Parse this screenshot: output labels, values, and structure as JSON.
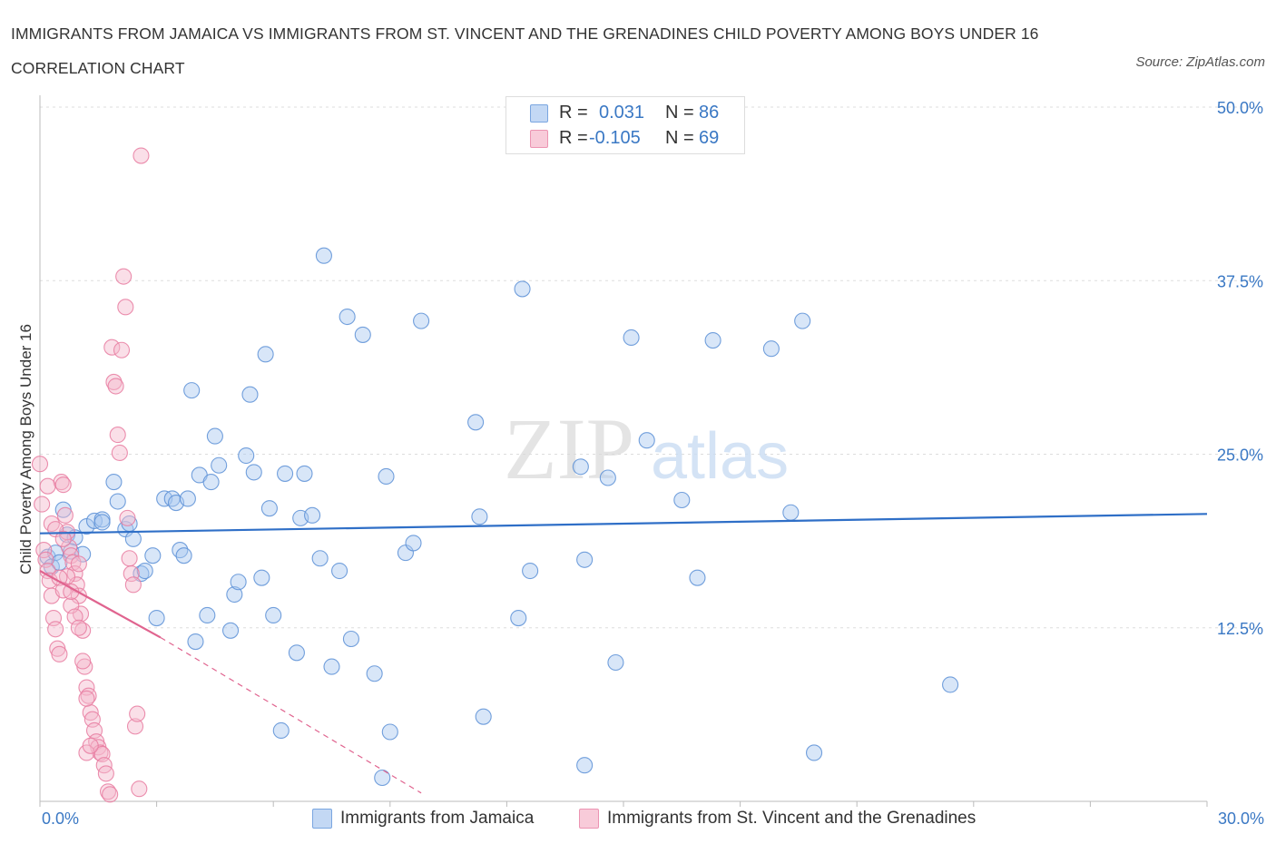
{
  "header": {
    "title": "IMMIGRANTS FROM JAMAICA VS IMMIGRANTS FROM ST. VINCENT AND THE GRENADINES CHILD POVERTY AMONG BOYS UNDER 16 CORRELATION CHART",
    "source": "Source: ZipAtlas.com"
  },
  "watermark": {
    "zip": "ZIP",
    "atlas": "atlas"
  },
  "legend": {
    "r_label": "R =",
    "n_label": "N =",
    "rows": [
      {
        "r": "0.031",
        "n": "86",
        "color": "#a9c8f0"
      },
      {
        "r": "-0.105",
        "n": "69",
        "color": "#f5b8cb"
      }
    ]
  },
  "bottom_legend": [
    {
      "label": "Immigrants from Jamaica",
      "color": "#a9c8f0"
    },
    {
      "label": "Immigrants from St. Vincent and the Grenadines",
      "color": "#f5b8cb"
    }
  ],
  "chart_data": {
    "type": "scatter",
    "xlabel": "",
    "ylabel": "Child Poverty Among Boys Under 16",
    "xlim": [
      0,
      30
    ],
    "ylim": [
      0,
      50
    ],
    "x_tick_labels": [
      "0.0%",
      "30.0%"
    ],
    "y_ticks": [
      12.5,
      25,
      37.5,
      50
    ],
    "y_tick_labels": [
      "12.5%",
      "25.0%",
      "37.5%",
      "50.0%"
    ],
    "grid": true,
    "legend_position": "top-center",
    "series": [
      {
        "name": "Immigrants from Jamaica",
        "color": "#5b8fd6",
        "fill": "#a9c8f0",
        "trend": {
          "x": [
            0,
            30
          ],
          "y": [
            19.3,
            20.7
          ],
          "color": "#2f6fc7"
        },
        "points": [
          [
            0.2,
            17.6
          ],
          [
            0.3,
            16.9
          ],
          [
            0.4,
            17.9
          ],
          [
            0.6,
            21.0
          ],
          [
            0.7,
            19.2
          ],
          [
            0.9,
            19.0
          ],
          [
            1.2,
            19.8
          ],
          [
            1.4,
            20.2
          ],
          [
            1.6,
            20.3
          ],
          [
            1.9,
            23.0
          ],
          [
            2.0,
            21.6
          ],
          [
            2.2,
            19.6
          ],
          [
            2.4,
            18.9
          ],
          [
            2.6,
            16.4
          ],
          [
            2.7,
            16.6
          ],
          [
            2.9,
            17.7
          ],
          [
            3.0,
            13.2
          ],
          [
            3.2,
            21.8
          ],
          [
            3.4,
            21.8
          ],
          [
            3.5,
            21.5
          ],
          [
            3.6,
            18.1
          ],
          [
            3.7,
            17.7
          ],
          [
            3.8,
            21.8
          ],
          [
            3.9,
            29.6
          ],
          [
            4.0,
            11.5
          ],
          [
            4.1,
            23.5
          ],
          [
            4.3,
            13.4
          ],
          [
            4.4,
            23.0
          ],
          [
            4.5,
            26.3
          ],
          [
            4.6,
            24.2
          ],
          [
            4.9,
            12.3
          ],
          [
            5.0,
            14.9
          ],
          [
            5.1,
            15.8
          ],
          [
            5.3,
            24.9
          ],
          [
            5.4,
            29.3
          ],
          [
            5.5,
            23.7
          ],
          [
            5.7,
            16.1
          ],
          [
            5.8,
            32.2
          ],
          [
            5.9,
            21.1
          ],
          [
            6.0,
            13.4
          ],
          [
            6.2,
            5.1
          ],
          [
            6.3,
            23.6
          ],
          [
            6.6,
            10.7
          ],
          [
            6.7,
            20.4
          ],
          [
            6.8,
            23.6
          ],
          [
            7.0,
            20.6
          ],
          [
            7.2,
            17.5
          ],
          [
            7.3,
            39.3
          ],
          [
            7.5,
            9.7
          ],
          [
            7.7,
            16.6
          ],
          [
            7.9,
            34.9
          ],
          [
            8.0,
            11.7
          ],
          [
            8.3,
            33.6
          ],
          [
            8.6,
            9.2
          ],
          [
            8.8,
            1.7
          ],
          [
            8.9,
            23.4
          ],
          [
            9.0,
            5.0
          ],
          [
            9.4,
            17.9
          ],
          [
            9.6,
            18.6
          ],
          [
            9.8,
            34.6
          ],
          [
            11.2,
            27.3
          ],
          [
            11.3,
            20.5
          ],
          [
            11.4,
            6.1
          ],
          [
            12.3,
            13.2
          ],
          [
            12.4,
            36.9
          ],
          [
            12.6,
            16.6
          ],
          [
            13.9,
            24.1
          ],
          [
            14.0,
            2.6
          ],
          [
            14.0,
            17.4
          ],
          [
            14.6,
            23.3
          ],
          [
            14.8,
            10.0
          ],
          [
            15.2,
            33.4
          ],
          [
            15.6,
            26.0
          ],
          [
            16.5,
            21.7
          ],
          [
            16.9,
            16.1
          ],
          [
            17.3,
            33.2
          ],
          [
            18.8,
            32.6
          ],
          [
            19.3,
            20.8
          ],
          [
            19.6,
            34.6
          ],
          [
            19.9,
            3.5
          ],
          [
            23.4,
            8.4
          ],
          [
            1.6,
            20.1
          ],
          [
            2.3,
            20.0
          ],
          [
            0.5,
            17.2
          ],
          [
            0.8,
            18.0
          ],
          [
            1.1,
            17.8
          ]
        ]
      },
      {
        "name": "Immigrants from St. Vincent and the Grenadines",
        "color": "#e87ba0",
        "fill": "#f5b8cb",
        "trend": {
          "x": [
            0,
            3.1
          ],
          "y": [
            16.6,
            11.8
          ],
          "dash_to": [
            9.8,
            0.6
          ],
          "color": "#e0648f"
        },
        "points": [
          [
            0.0,
            24.3
          ],
          [
            0.05,
            21.4
          ],
          [
            0.1,
            18.1
          ],
          [
            0.15,
            17.4
          ],
          [
            0.2,
            16.6
          ],
          [
            0.25,
            15.9
          ],
          [
            0.3,
            14.8
          ],
          [
            0.35,
            13.2
          ],
          [
            0.4,
            12.4
          ],
          [
            0.45,
            11.0
          ],
          [
            0.5,
            10.6
          ],
          [
            0.55,
            23.0
          ],
          [
            0.6,
            22.8
          ],
          [
            0.65,
            20.6
          ],
          [
            0.7,
            19.4
          ],
          [
            0.75,
            18.3
          ],
          [
            0.8,
            17.7
          ],
          [
            0.85,
            17.2
          ],
          [
            0.9,
            16.4
          ],
          [
            0.95,
            15.6
          ],
          [
            1.0,
            14.8
          ],
          [
            1.05,
            13.5
          ],
          [
            1.1,
            12.3
          ],
          [
            1.15,
            9.7
          ],
          [
            1.2,
            8.2
          ],
          [
            1.25,
            7.6
          ],
          [
            1.3,
            6.4
          ],
          [
            1.35,
            5.9
          ],
          [
            1.4,
            5.1
          ],
          [
            1.45,
            4.3
          ],
          [
            1.5,
            3.9
          ],
          [
            1.55,
            3.5
          ],
          [
            1.6,
            3.4
          ],
          [
            1.65,
            2.6
          ],
          [
            1.7,
            2.0
          ],
          [
            1.75,
            0.7
          ],
          [
            1.8,
            0.5
          ],
          [
            1.85,
            32.7
          ],
          [
            1.9,
            30.2
          ],
          [
            1.95,
            29.9
          ],
          [
            2.0,
            26.4
          ],
          [
            2.05,
            25.1
          ],
          [
            2.1,
            32.5
          ],
          [
            2.15,
            37.8
          ],
          [
            2.2,
            35.6
          ],
          [
            2.25,
            20.4
          ],
          [
            2.3,
            17.5
          ],
          [
            2.35,
            16.4
          ],
          [
            2.4,
            15.6
          ],
          [
            2.45,
            5.4
          ],
          [
            2.5,
            6.3
          ],
          [
            2.55,
            0.9
          ],
          [
            2.6,
            46.5
          ],
          [
            0.3,
            20.0
          ],
          [
            0.4,
            19.6
          ],
          [
            0.6,
            18.9
          ],
          [
            0.7,
            16.2
          ],
          [
            0.8,
            14.1
          ],
          [
            0.9,
            13.3
          ],
          [
            1.0,
            12.5
          ],
          [
            1.1,
            10.1
          ],
          [
            1.2,
            7.4
          ],
          [
            0.2,
            22.7
          ],
          [
            0.5,
            16.1
          ],
          [
            0.6,
            15.2
          ],
          [
            0.8,
            15.1
          ],
          [
            1.0,
            17.1
          ],
          [
            1.2,
            3.5
          ],
          [
            1.3,
            4.0
          ]
        ]
      }
    ]
  }
}
